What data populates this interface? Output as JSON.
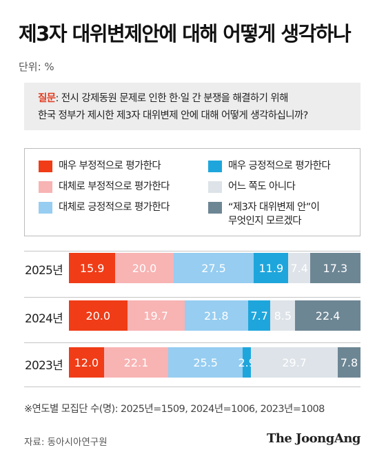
{
  "title": "제3자 대위변제안에 대해 어떻게 생각하나",
  "unit": "단위: %",
  "question": {
    "label": "질문",
    "line1": ": 전시 강제동원 문제로 인한 한·일 간 분쟁을 해결하기 위해",
    "line2": "한국 정부가 제시한 제3자 대위변제 안에 대해 어떻게 생각하십니까?"
  },
  "colors": {
    "very_negative": "#f03c17",
    "somewhat_negative": "#f8b3b3",
    "somewhat_positive": "#96cdf1",
    "very_positive": "#1ea6dc",
    "neither": "#dde3e8",
    "dont_know": "#6d8694"
  },
  "chart_data": {
    "type": "bar",
    "orientation": "horizontal-stacked",
    "categories": [
      "2025년",
      "2024년",
      "2023년"
    ],
    "series": [
      {
        "name": "매우 부정적으로 평가한다",
        "color": "#f03c17",
        "values": [
          15.9,
          20.0,
          12.0
        ]
      },
      {
        "name": "대체로 부정적으로 평가한다",
        "color": "#f8b3b3",
        "values": [
          20.0,
          19.7,
          22.1
        ]
      },
      {
        "name": "대체로 긍정적으로 평가한다",
        "color": "#96cdf1",
        "values": [
          27.5,
          21.8,
          25.5
        ]
      },
      {
        "name": "매우 긍정적으로 평가한다",
        "color": "#1ea6dc",
        "values": [
          11.9,
          7.7,
          2.9
        ]
      },
      {
        "name": "어느 쪽도 아니다",
        "color": "#dde3e8",
        "values": [
          7.4,
          8.5,
          29.7
        ]
      },
      {
        "name": "“제3자 대위변제 안”이\n무엇인지 모르겠다",
        "color": "#6d8694",
        "values": [
          17.3,
          22.4,
          7.8
        ]
      }
    ],
    "value_labels": [
      [
        "15.9",
        "20.0",
        "27.5",
        "11.9",
        "7.4",
        "17.3"
      ],
      [
        "20.0",
        "19.7",
        "21.8",
        "7.7",
        "8.5",
        "22.4"
      ],
      [
        "12.0",
        "22.1",
        "25.5",
        "2.9",
        "29.7",
        "7.8"
      ]
    ],
    "legend_position": "top"
  },
  "legend": [
    {
      "label": "매우 부정적으로 평가한다",
      "color": "#f03c17"
    },
    {
      "label": "매우 긍정적으로 평가한다",
      "color": "#1ea6dc"
    },
    {
      "label": "대체로 부정적으로 평가한다",
      "color": "#f8b3b3"
    },
    {
      "label": "어느 쪽도 아니다",
      "color": "#dde3e8"
    },
    {
      "label": "대체로 긍정적으로 평가한다",
      "color": "#96cdf1"
    },
    {
      "label": "“제3자 대위변제 안”이\n무엇인지 모르겠다",
      "color": "#6d8694"
    }
  ],
  "note": "※연도별 모집단 수(명): 2025년=1509, 2024년=1006, 2023년=1008",
  "source": "자료: 동아시아연구원",
  "logo": "The JoongAng"
}
